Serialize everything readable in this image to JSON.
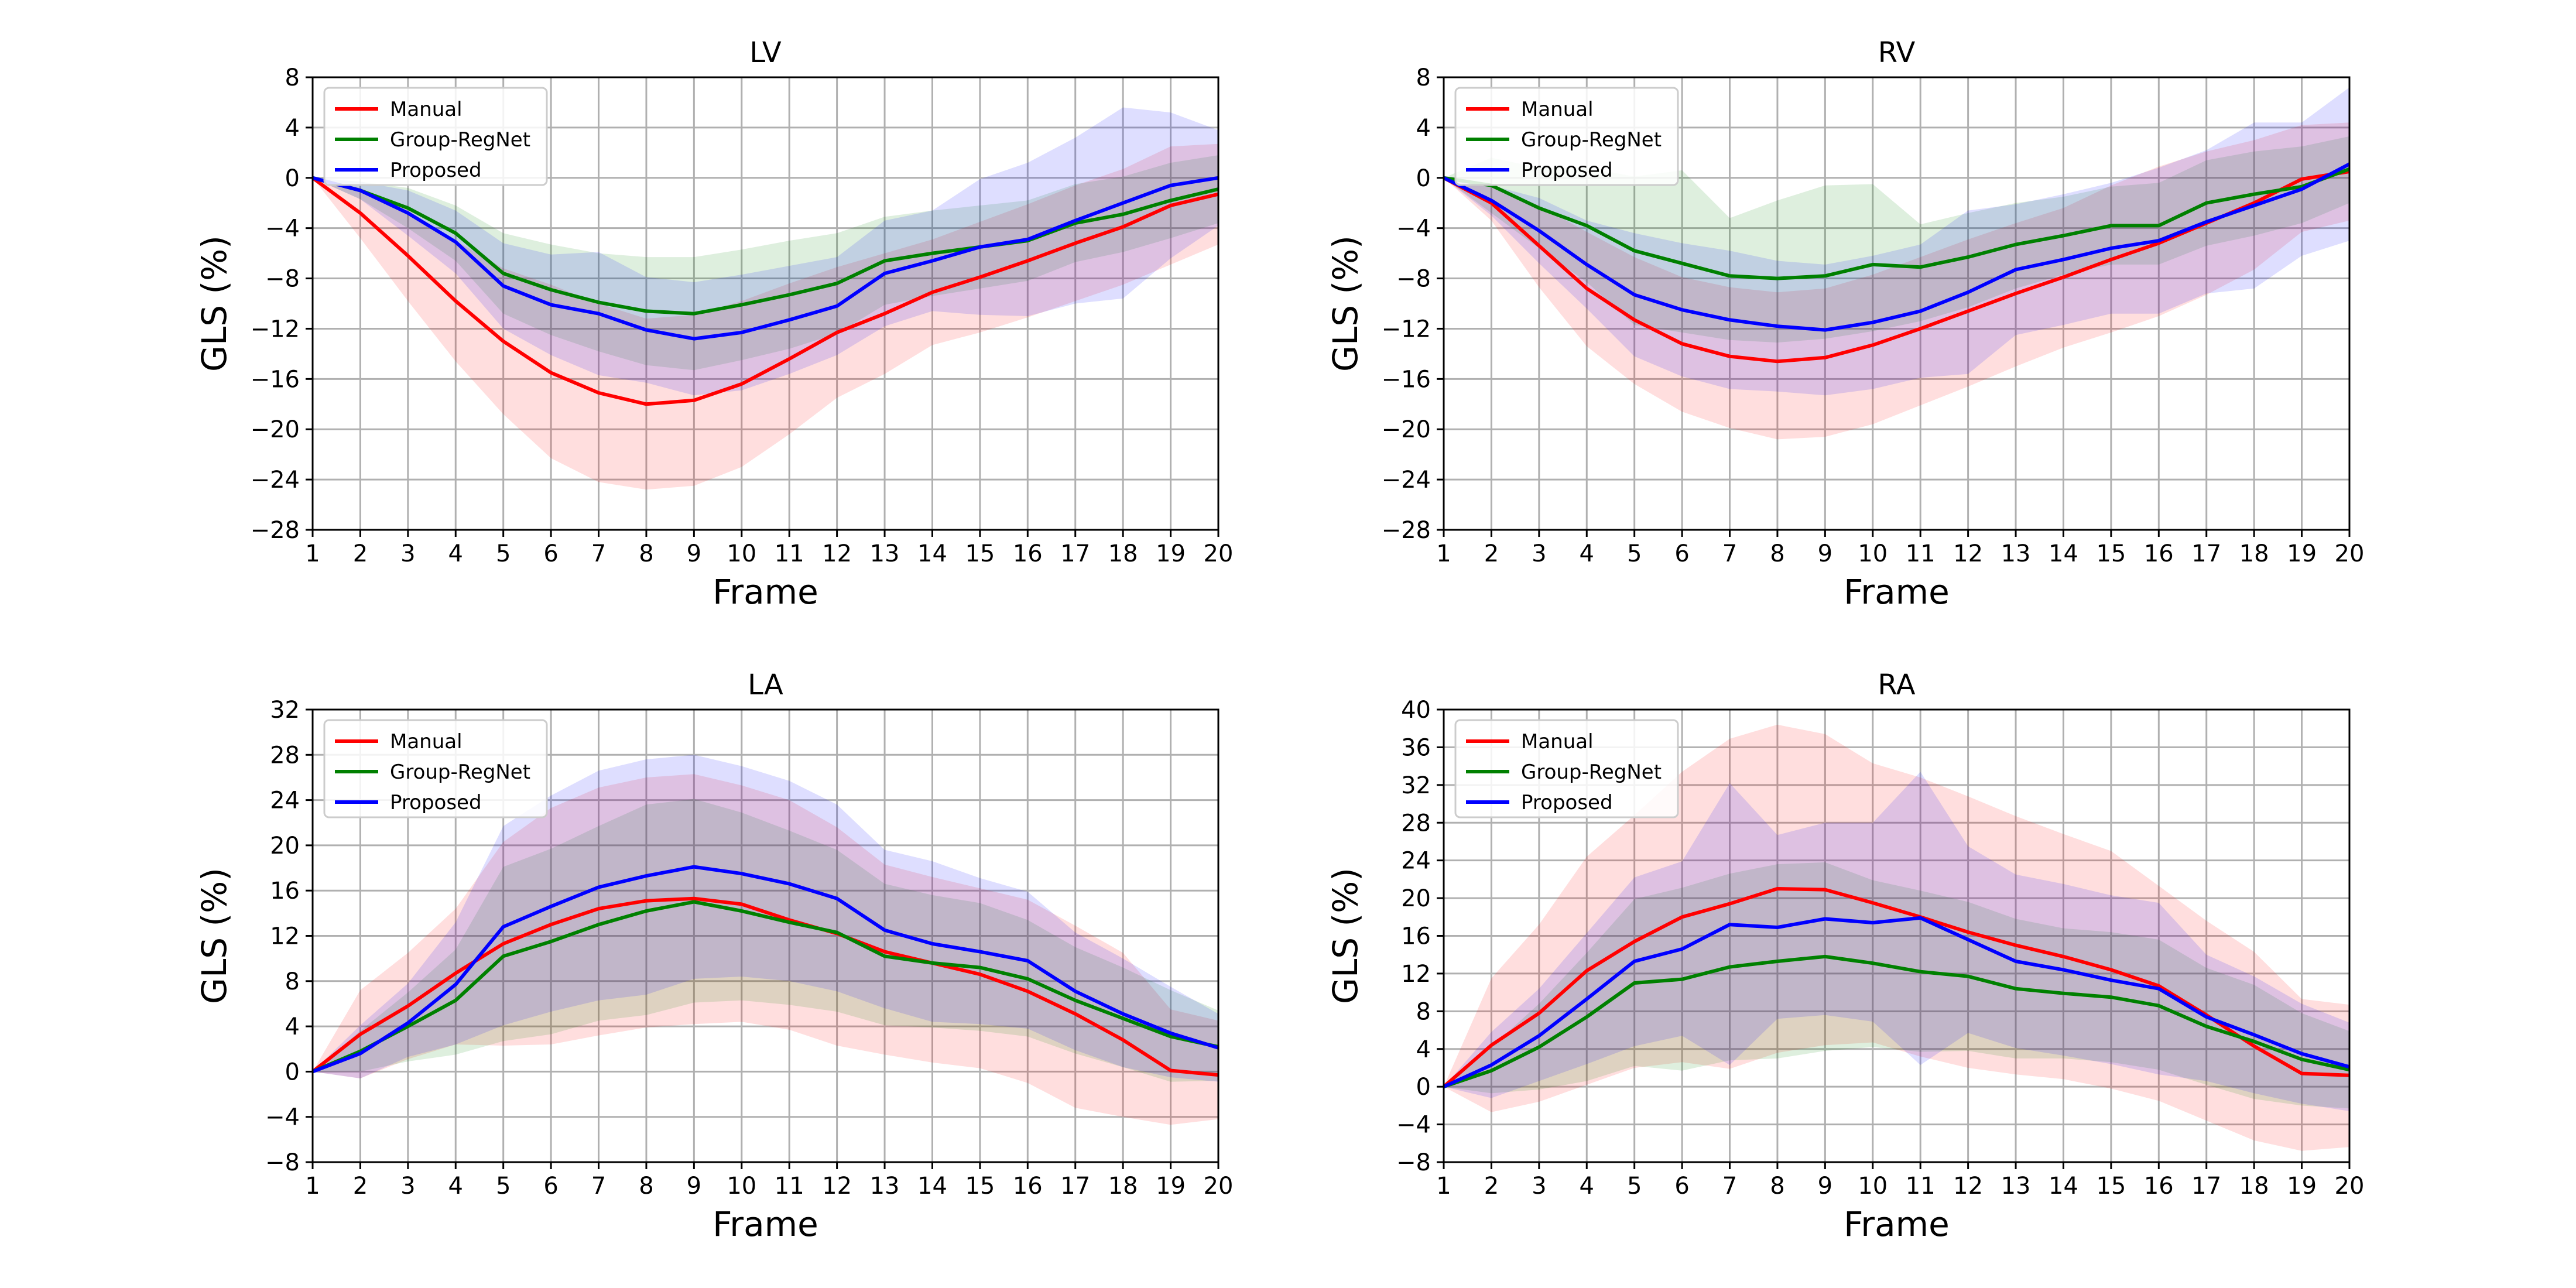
{
  "chart_data": [
    {
      "type": "line",
      "title": "LV",
      "xlabel": "Frame",
      "ylabel": "GLS (%)",
      "x": [
        1,
        2,
        3,
        4,
        5,
        6,
        7,
        8,
        9,
        10,
        11,
        12,
        13,
        14,
        15,
        16,
        17,
        18,
        19,
        20
      ],
      "xlim": [
        1,
        20
      ],
      "ylim": [
        -28,
        8
      ],
      "yticks": [
        -28,
        -24,
        -20,
        -16,
        -12,
        -8,
        -4,
        0,
        4,
        8
      ],
      "grid": true,
      "legend_position": "top-left",
      "series": [
        {
          "name": "Manual",
          "color": "#ff0000",
          "values": [
            0,
            -2.8,
            -6.2,
            -9.8,
            -13,
            -15.5,
            -17.1,
            -18,
            -17.7,
            -16.4,
            -14.4,
            -12.3,
            -10.8,
            -9.1,
            -7.9,
            -6.6,
            -5.2,
            -3.9,
            -2.2,
            -1.3
          ],
          "upper": [
            0,
            -0.8,
            -2.6,
            -5,
            -7.2,
            -8.5,
            -10,
            -11.2,
            -10.9,
            -9.8,
            -8.4,
            -7.1,
            -6,
            -4.9,
            -3.5,
            -2.1,
            -0.6,
            0.7,
            2.5,
            2.7
          ],
          "lower": [
            0,
            -4.8,
            -9.8,
            -14.6,
            -18.8,
            -22.3,
            -24.2,
            -24.8,
            -24.5,
            -23,
            -20.4,
            -17.5,
            -15.6,
            -13.3,
            -12.3,
            -11.1,
            -9.8,
            -8.5,
            -6.9,
            -5.3
          ]
        },
        {
          "name": "Group-RegNet",
          "color": "#008000",
          "values": [
            0,
            -1,
            -2.4,
            -4.4,
            -7.6,
            -8.9,
            -9.9,
            -10.6,
            -10.8,
            -10.1,
            -9.3,
            -8.4,
            -6.6,
            -6,
            -5.5,
            -5,
            -3.6,
            -2.9,
            -1.8,
            -0.9
          ],
          "upper": [
            0,
            -0.3,
            -0.8,
            -2.2,
            -4.4,
            -5.3,
            -6,
            -6.3,
            -6.3,
            -5.7,
            -5,
            -4.4,
            -3.1,
            -2.6,
            -2.2,
            -1.8,
            -0.5,
            0.1,
            1.2,
            1.8
          ],
          "lower": [
            0,
            -1.7,
            -4,
            -6.6,
            -10.8,
            -12.5,
            -13.8,
            -14.9,
            -15.3,
            -14.5,
            -13.6,
            -12.4,
            -10.1,
            -9.4,
            -8.8,
            -8.2,
            -6.7,
            -5.9,
            -4.8,
            -3.6
          ]
        },
        {
          "name": "Proposed",
          "color": "#0000ff",
          "values": [
            0,
            -1,
            -2.8,
            -5.1,
            -8.6,
            -10.1,
            -10.8,
            -12.1,
            -12.8,
            -12.3,
            -11.3,
            -10.2,
            -7.6,
            -6.6,
            -5.5,
            -4.9,
            -3.4,
            -2,
            -0.6,
            0
          ],
          "upper": [
            0,
            -0.3,
            -1,
            -2.6,
            -5.2,
            -6.1,
            -5.9,
            -7.9,
            -8.3,
            -7.7,
            -7,
            -6.3,
            -3.4,
            -2.6,
            -0.1,
            1.2,
            3.2,
            5.6,
            5.2,
            3.8
          ],
          "lower": [
            0,
            -1.7,
            -4.6,
            -7.6,
            -12,
            -14.1,
            -15.7,
            -16.3,
            -17.3,
            -16.9,
            -15.6,
            -14.1,
            -11.8,
            -10.6,
            -10.9,
            -11,
            -10,
            -9.6,
            -6.4,
            -3.8
          ]
        }
      ]
    },
    {
      "type": "line",
      "title": "RV",
      "xlabel": "Frame",
      "ylabel": "GLS (%)",
      "x": [
        1,
        2,
        3,
        4,
        5,
        6,
        7,
        8,
        9,
        10,
        11,
        12,
        13,
        14,
        15,
        16,
        17,
        18,
        19,
        20
      ],
      "xlim": [
        1,
        20
      ],
      "ylim": [
        -28,
        8
      ],
      "yticks": [
        -28,
        -24,
        -20,
        -16,
        -12,
        -8,
        -4,
        0,
        4,
        8
      ],
      "grid": true,
      "legend_position": "top-left",
      "series": [
        {
          "name": "Manual",
          "color": "#ff0000",
          "values": [
            0,
            -2,
            -5.4,
            -8.8,
            -11.3,
            -13.2,
            -14.2,
            -14.6,
            -14.3,
            -13.3,
            -12,
            -10.6,
            -9.2,
            -7.9,
            -6.5,
            -5.2,
            -3.6,
            -2,
            -0.1,
            0.5
          ],
          "upper": [
            0,
            -0.6,
            -2.2,
            -4.3,
            -6.3,
            -7.9,
            -8.7,
            -9.1,
            -8.8,
            -7.7,
            -6.3,
            -4.9,
            -3.6,
            -2.4,
            -0.6,
            0.9,
            2.1,
            3,
            4.2,
            4.4
          ],
          "lower": [
            0,
            -3.4,
            -8.7,
            -13.4,
            -16.4,
            -18.6,
            -19.9,
            -20.8,
            -20.6,
            -19.6,
            -18.1,
            -16.6,
            -15,
            -13.5,
            -12.3,
            -11,
            -9.3,
            -7.3,
            -4.3,
            -3.4
          ]
        },
        {
          "name": "Group-RegNet",
          "color": "#008000",
          "values": [
            0,
            -0.6,
            -2.4,
            -3.8,
            -5.8,
            -6.8,
            -7.8,
            -8,
            -7.8,
            -6.9,
            -7.1,
            -6.3,
            -5.3,
            -4.6,
            -3.8,
            -3.8,
            -2,
            -1.3,
            -0.7,
            0.7
          ],
          "upper": [
            0,
            1.6,
            0.8,
            0.8,
            0.1,
            0.6,
            -3.2,
            -1.8,
            -0.6,
            -0.5,
            -3.7,
            -2.8,
            -2,
            -1.5,
            -0.7,
            -0.4,
            1.4,
            2.1,
            2.5,
            3.3
          ],
          "lower": [
            0,
            -2.8,
            -5.6,
            -8.3,
            -11.7,
            -12.3,
            -12.9,
            -13.1,
            -12.8,
            -12.2,
            -11.4,
            -10.3,
            -8.8,
            -7.7,
            -6.9,
            -6.9,
            -5.4,
            -4.6,
            -3.6,
            -2
          ]
        },
        {
          "name": "Proposed",
          "color": "#0000ff",
          "values": [
            0,
            -1.8,
            -4.2,
            -6.9,
            -9.3,
            -10.5,
            -11.3,
            -11.8,
            -12.1,
            -11.5,
            -10.6,
            -9.1,
            -7.3,
            -6.5,
            -5.6,
            -5,
            -3.5,
            -2.2,
            -0.9,
            1.1
          ],
          "upper": [
            0,
            -0.6,
            -1.6,
            -3.4,
            -4.4,
            -5.2,
            -5.8,
            -6.6,
            -6.9,
            -6.2,
            -5.3,
            -2.6,
            -2.1,
            -1.3,
            -0.4,
            0.8,
            2.2,
            4.4,
            4.4,
            7.2
          ],
          "lower": [
            0,
            -3,
            -6.8,
            -10.4,
            -14.2,
            -15.8,
            -16.8,
            -17,
            -17.3,
            -16.8,
            -15.9,
            -15.6,
            -12.5,
            -11.7,
            -10.8,
            -10.8,
            -9.2,
            -8.8,
            -6.2,
            -5
          ]
        }
      ]
    },
    {
      "type": "line",
      "title": "LA",
      "xlabel": "Frame",
      "ylabel": "GLS (%)",
      "x": [
        1,
        2,
        3,
        4,
        5,
        6,
        7,
        8,
        9,
        10,
        11,
        12,
        13,
        14,
        15,
        16,
        17,
        18,
        19,
        20
      ],
      "xlim": [
        1,
        20
      ],
      "ylim": [
        -8,
        32
      ],
      "yticks": [
        -8,
        -4,
        0,
        4,
        8,
        12,
        16,
        20,
        24,
        28,
        32
      ],
      "grid": true,
      "legend_position": "top-left",
      "series": [
        {
          "name": "Manual",
          "color": "#ff0000",
          "values": [
            0,
            3.3,
            5.8,
            8.7,
            11.3,
            13,
            14.4,
            15.1,
            15.3,
            14.8,
            13.4,
            12.2,
            10.6,
            9.6,
            8.6,
            7.1,
            5.1,
            2.8,
            0.1,
            -0.3
          ],
          "upper": [
            0,
            7.2,
            10.5,
            14.4,
            20.3,
            23.3,
            25.1,
            26,
            26.3,
            25.3,
            24,
            21.6,
            18.3,
            17.2,
            16.2,
            15.2,
            12.9,
            10.5,
            5.5,
            4.5
          ],
          "lower": [
            0,
            -0.6,
            1.1,
            2.4,
            2.3,
            2.4,
            3.2,
            3.9,
            4.2,
            4.4,
            3.7,
            2.3,
            1.5,
            0.8,
            0.3,
            -1,
            -3.2,
            -4,
            -4.7,
            -4.2
          ]
        },
        {
          "name": "Group-RegNet",
          "color": "#008000",
          "values": [
            0,
            1.8,
            4,
            6.3,
            10.2,
            11.5,
            13,
            14.2,
            15,
            14.2,
            13.2,
            12.3,
            10.2,
            9.6,
            9.2,
            8.2,
            6.3,
            4.7,
            3.1,
            2.2
          ],
          "upper": [
            0,
            3.6,
            7,
            10.8,
            18.1,
            19.7,
            21.7,
            23.6,
            24.1,
            22.9,
            21.3,
            19.6,
            16.6,
            15.6,
            14.9,
            13.4,
            11,
            9.2,
            7.2,
            5.4
          ],
          "lower": [
            0,
            0,
            0.9,
            1.5,
            2.7,
            3.3,
            4.5,
            5,
            6.1,
            6.3,
            5.9,
            5.3,
            4.1,
            3.9,
            3.6,
            3.1,
            1.6,
            0.4,
            -0.9,
            -0.8
          ]
        },
        {
          "name": "Proposed",
          "color": "#0000ff",
          "values": [
            0,
            1.6,
            4.3,
            7.7,
            12.8,
            14.6,
            16.3,
            17.3,
            18.1,
            17.5,
            16.6,
            15.3,
            12.5,
            11.3,
            10.6,
            9.8,
            7.1,
            5.1,
            3.4,
            2.1
          ],
          "upper": [
            0,
            4.1,
            7.8,
            13.2,
            21.7,
            24.4,
            26.6,
            27.6,
            28,
            27,
            25.7,
            23.6,
            19.6,
            18.6,
            17.1,
            15.9,
            12.3,
            10,
            7.5,
            5.1
          ],
          "lower": [
            0,
            -0.6,
            1.3,
            2.4,
            4.1,
            5.3,
            6.3,
            6.8,
            8.2,
            8.4,
            8,
            7.1,
            5.6,
            4.4,
            4.2,
            3.8,
            1.9,
            0.4,
            -0.5,
            -0.9
          ]
        }
      ]
    },
    {
      "type": "line",
      "title": "RA",
      "xlabel": "Frame",
      "ylabel": "GLS (%)",
      "x": [
        1,
        2,
        3,
        4,
        5,
        6,
        7,
        8,
        9,
        10,
        11,
        12,
        13,
        14,
        15,
        16,
        17,
        18,
        19,
        20
      ],
      "xlim": [
        1,
        20
      ],
      "ylim": [
        -8,
        40
      ],
      "yticks": [
        -8,
        -4,
        0,
        4,
        8,
        12,
        16,
        20,
        24,
        28,
        32,
        36,
        40
      ],
      "grid": true,
      "legend_position": "top-left",
      "series": [
        {
          "name": "Manual",
          "color": "#ff0000",
          "values": [
            0,
            4.4,
            7.8,
            12.3,
            15.4,
            18,
            19.4,
            21,
            20.9,
            19.5,
            18,
            16.4,
            15,
            13.8,
            12.4,
            10.7,
            7.6,
            4.3,
            1.4,
            1.2
          ],
          "upper": [
            0,
            11.5,
            17.2,
            24.4,
            28.8,
            33.4,
            36.9,
            38.4,
            37.4,
            34.3,
            32.8,
            30.8,
            28.7,
            26.8,
            25,
            21.3,
            17.6,
            14.3,
            9.3,
            8.7
          ],
          "lower": [
            0,
            -2.7,
            -1.6,
            0.2,
            2,
            2.6,
            1.9,
            3.6,
            4.4,
            4.7,
            3.2,
            2,
            1.3,
            0.8,
            -0.2,
            -1.5,
            -3.6,
            -5.7,
            -6.8,
            -6.4
          ]
        },
        {
          "name": "Group-RegNet",
          "color": "#008000",
          "values": [
            0,
            1.7,
            4.2,
            7.4,
            11,
            11.4,
            12.7,
            13.3,
            13.8,
            13.1,
            12.2,
            11.7,
            10.4,
            9.9,
            9.5,
            8.6,
            6.4,
            4.8,
            2.9,
            1.8
          ],
          "upper": [
            0,
            4.2,
            8.8,
            14.2,
            19.9,
            21.1,
            22.6,
            23.6,
            23.8,
            21.9,
            20.8,
            19.6,
            17.8,
            16.8,
            16.4,
            15.6,
            12.6,
            10.8,
            7.8,
            5.9
          ],
          "lower": [
            0,
            -0.7,
            -0.3,
            0.6,
            2.2,
            1.7,
            2.8,
            3,
            3.8,
            4.2,
            3.7,
            3.8,
            3,
            3,
            2.6,
            1.8,
            0.2,
            -1.3,
            -2,
            -2.3
          ]
        },
        {
          "name": "Proposed",
          "color": "#0000ff",
          "values": [
            0,
            2.3,
            5.4,
            9.3,
            13.3,
            14.6,
            17.2,
            16.9,
            17.8,
            17.4,
            17.9,
            15.6,
            13.3,
            12.4,
            11.3,
            10.4,
            7.4,
            5.5,
            3.5,
            2.1
          ],
          "upper": [
            0,
            5.8,
            10.4,
            16.3,
            22.2,
            23.9,
            32.2,
            26.7,
            28,
            28,
            33.4,
            25.5,
            22.5,
            21.5,
            20.3,
            19.5,
            14,
            11.7,
            8.8,
            6.8
          ],
          "lower": [
            0,
            -1.2,
            0.6,
            2.4,
            4.3,
            5.4,
            2.3,
            7.2,
            7.6,
            6.9,
            2.3,
            5.7,
            4.1,
            3.3,
            2.4,
            1.3,
            0.6,
            -0.7,
            -1.8,
            -2.6
          ]
        }
      ]
    }
  ]
}
